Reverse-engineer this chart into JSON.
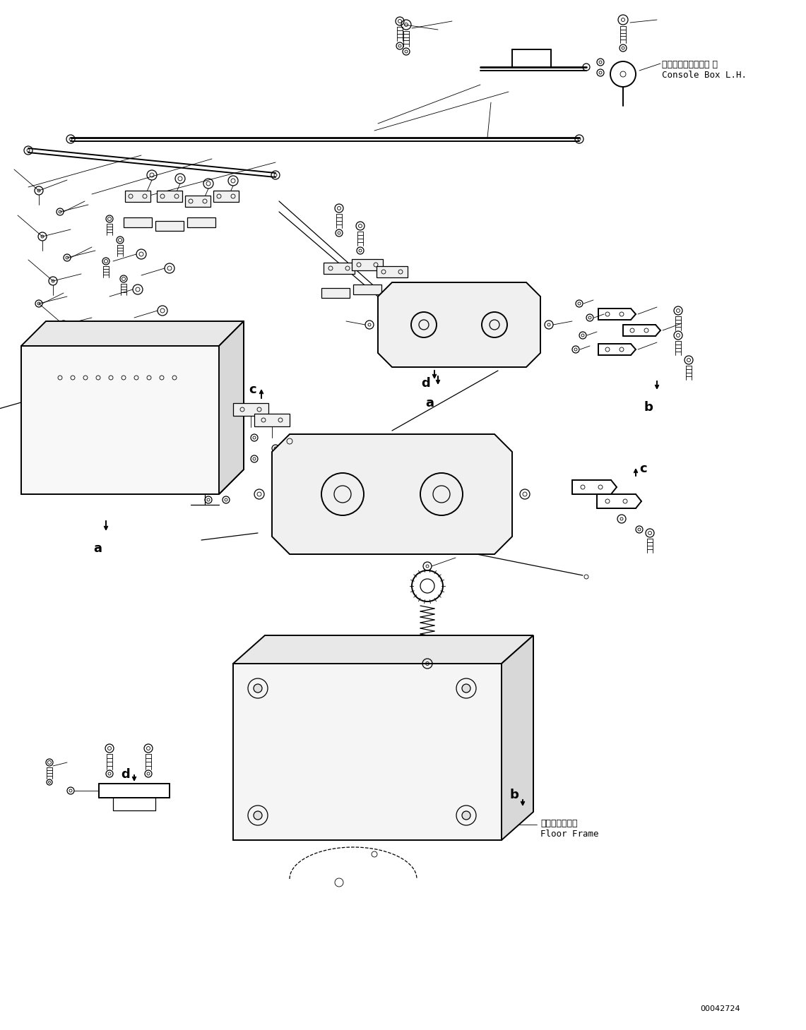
{
  "background_color": "#ffffff",
  "line_color": "#000000",
  "text_color": "#000000",
  "figsize": [
    11.41,
    14.59
  ],
  "dpi": 100,
  "labels": {
    "console_box_jp": "コンソールボックス 左",
    "console_box_en": "Console Box L.H.",
    "floor_frame_jp": "フロアフレーム",
    "floor_frame_en": "Floor Frame",
    "id_number": "00042724"
  }
}
